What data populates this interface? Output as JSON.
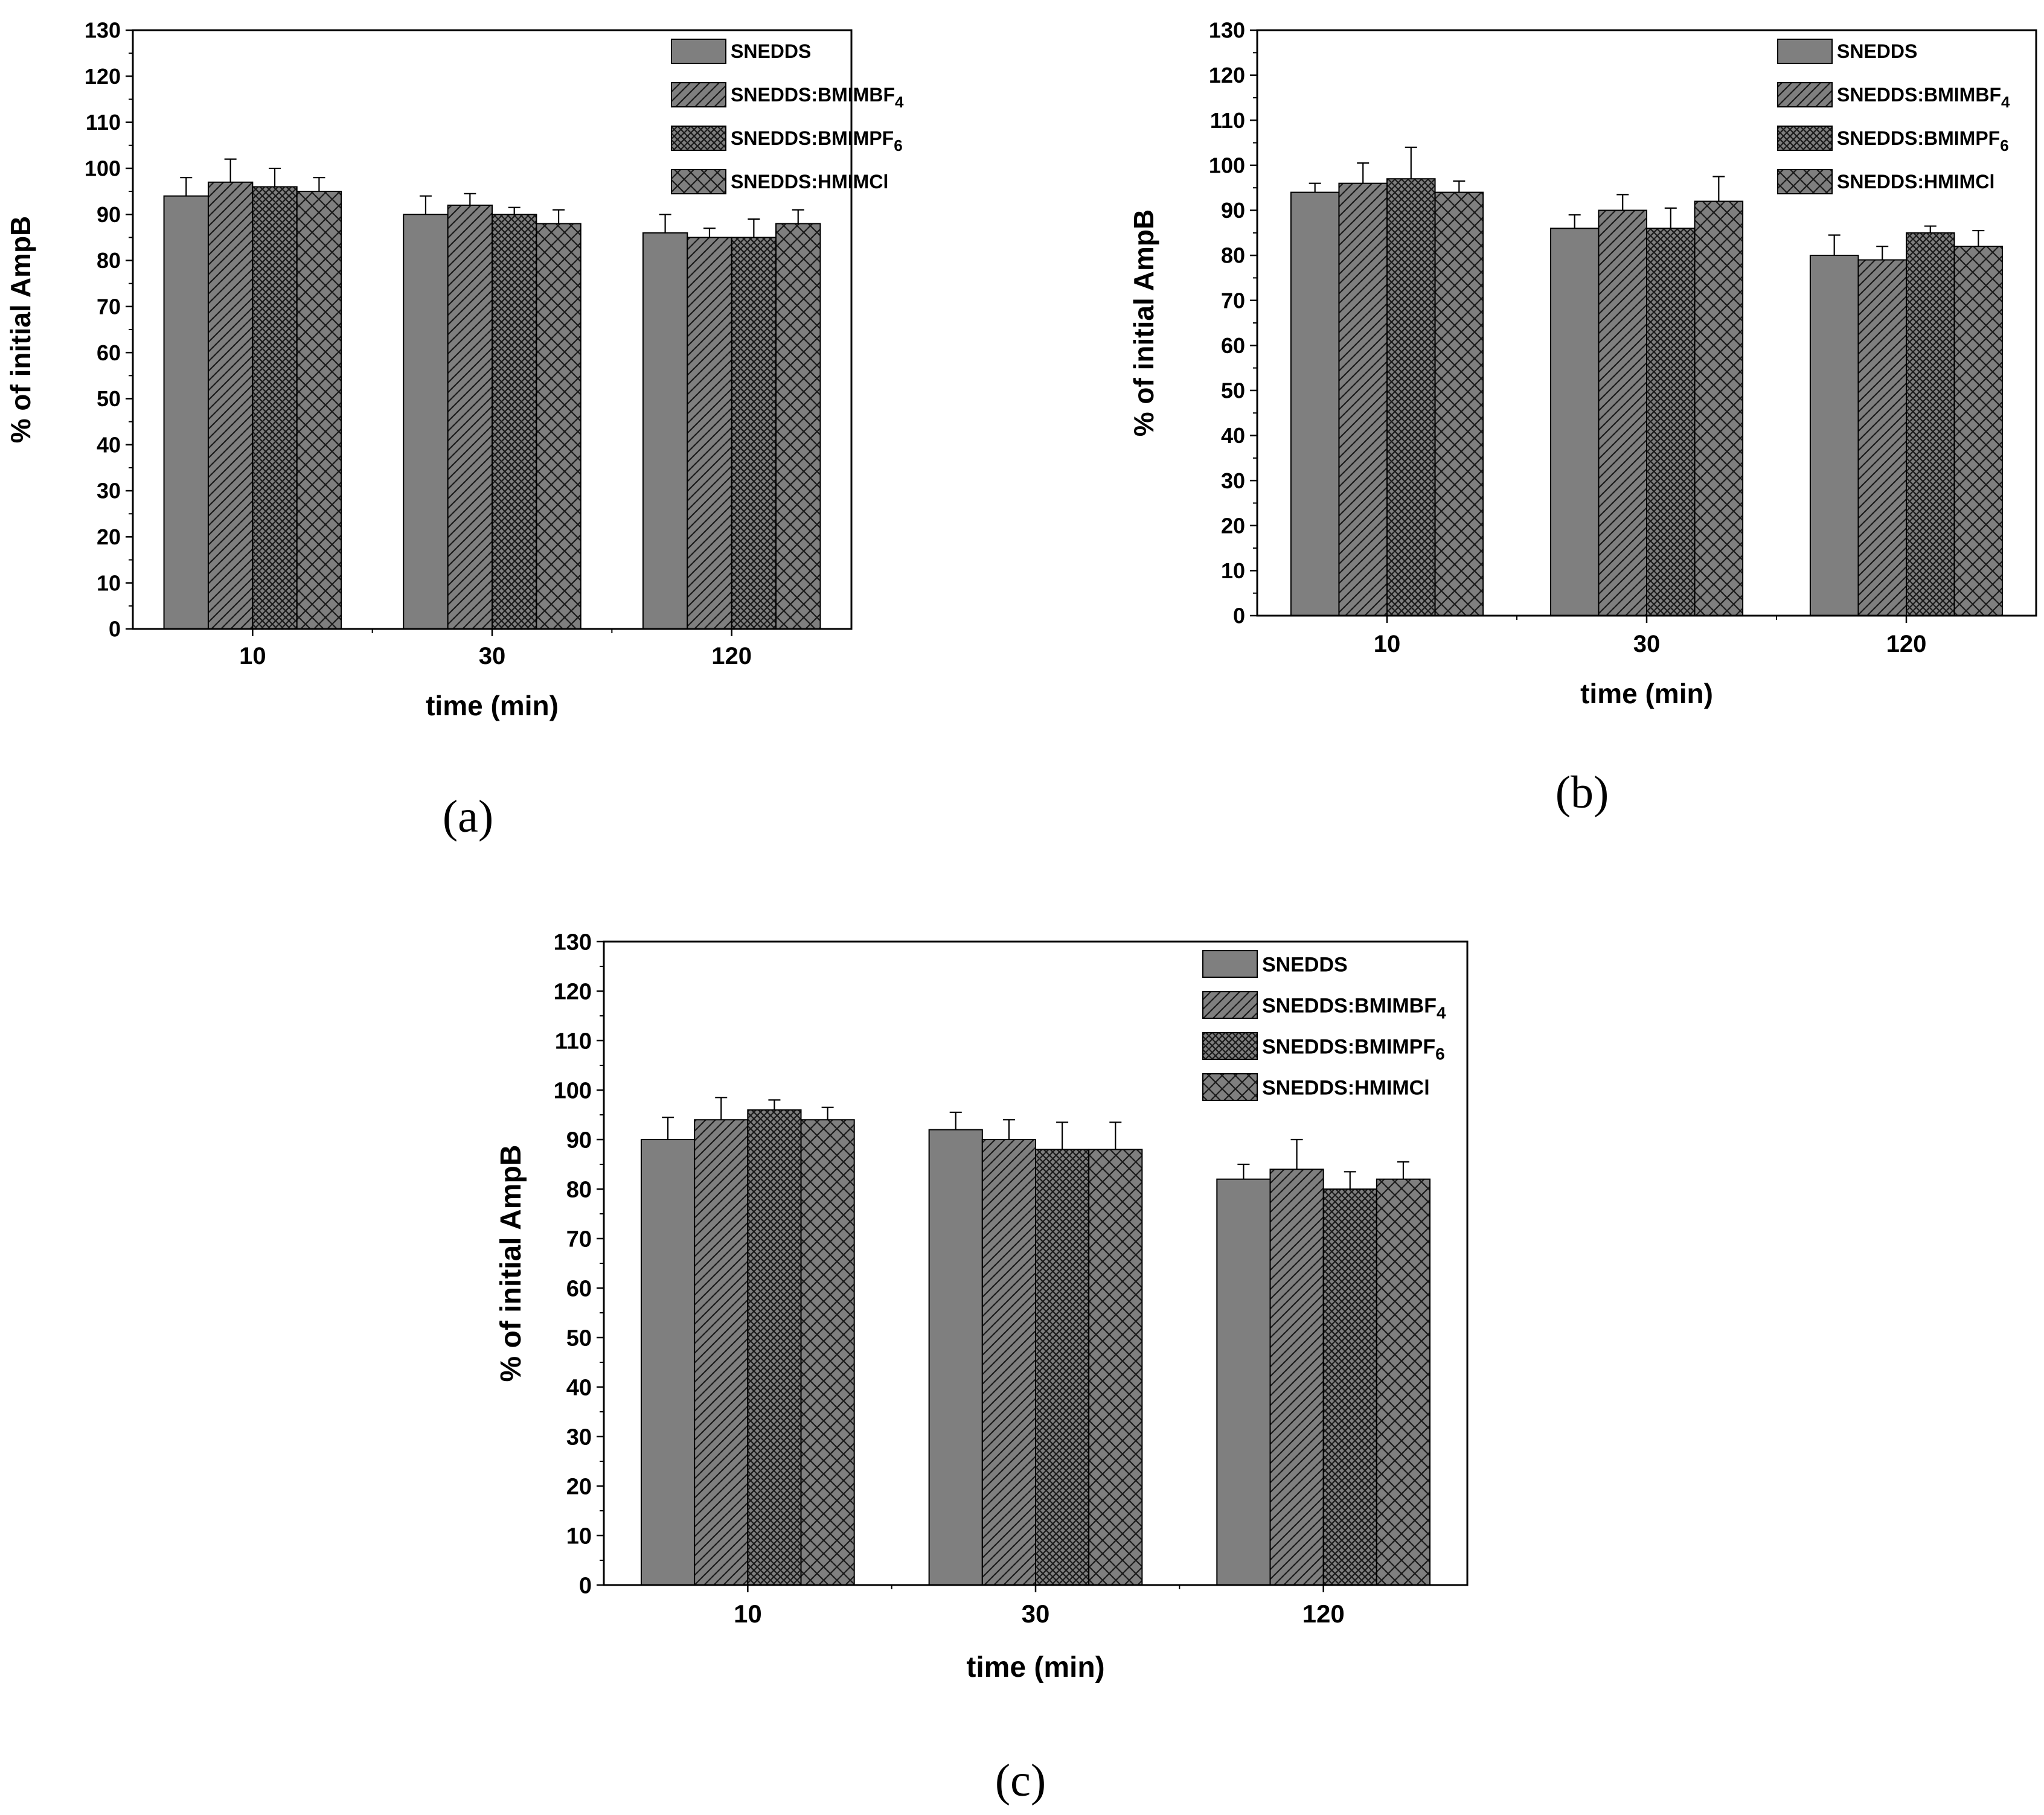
{
  "colors": {
    "bar_fill": "#7f7f7f",
    "hatch": "#1a1a1a",
    "axis": "#000000",
    "background": "#ffffff"
  },
  "chart_data": [
    {
      "type": "bar",
      "panel_label": "(a)",
      "title": "",
      "xlabel": "time (min)",
      "ylabel": "% of initial AmpB",
      "categories": [
        "10",
        "30",
        "120"
      ],
      "ylim": [
        0,
        130
      ],
      "yticks": [
        0,
        10,
        20,
        30,
        40,
        50,
        60,
        70,
        80,
        90,
        100,
        110,
        120,
        130
      ],
      "legend_position": "top-right",
      "series": [
        {
          "name": "SNEDDS",
          "pattern": "solid",
          "values": [
            94,
            90,
            86
          ],
          "errors": [
            4,
            4,
            4
          ]
        },
        {
          "name": "SNEDDS:BMIMBF4",
          "pattern": "diagonal",
          "values": [
            97,
            92,
            85
          ],
          "errors": [
            5,
            2.5,
            2
          ]
        },
        {
          "name": "SNEDDS:BMIMPF6",
          "pattern": "dense-crosshatch",
          "values": [
            96,
            90,
            85
          ],
          "errors": [
            4,
            1.5,
            4
          ]
        },
        {
          "name": "SNEDDS:HMIMCl",
          "pattern": "crosshatch",
          "values": [
            95,
            88,
            88
          ],
          "errors": [
            3,
            3,
            3
          ]
        }
      ]
    },
    {
      "type": "bar",
      "panel_label": "(b)",
      "title": "",
      "xlabel": "time (min)",
      "ylabel": "% of initial AmpB",
      "categories": [
        "10",
        "30",
        "120"
      ],
      "ylim": [
        0,
        130
      ],
      "yticks": [
        0,
        10,
        20,
        30,
        40,
        50,
        60,
        70,
        80,
        90,
        100,
        110,
        120,
        130
      ],
      "legend_position": "top-right",
      "series": [
        {
          "name": "SNEDDS",
          "pattern": "solid",
          "values": [
            94,
            86,
            80
          ],
          "errors": [
            2,
            3,
            4.5
          ]
        },
        {
          "name": "SNEDDS:BMIMBF4",
          "pattern": "diagonal",
          "values": [
            96,
            90,
            79
          ],
          "errors": [
            4.5,
            3.5,
            3
          ]
        },
        {
          "name": "SNEDDS:BMIMPF6",
          "pattern": "dense-crosshatch",
          "values": [
            97,
            86,
            85
          ],
          "errors": [
            7,
            4.5,
            1.5
          ]
        },
        {
          "name": "SNEDDS:HMIMCl",
          "pattern": "crosshatch",
          "values": [
            94,
            92,
            82
          ],
          "errors": [
            2.5,
            5.5,
            3.5
          ]
        }
      ]
    },
    {
      "type": "bar",
      "panel_label": "(c)",
      "title": "",
      "xlabel": "time (min)",
      "ylabel": "% of initial AmpB",
      "categories": [
        "10",
        "30",
        "120"
      ],
      "ylim": [
        0,
        130
      ],
      "yticks": [
        0,
        10,
        20,
        30,
        40,
        50,
        60,
        70,
        80,
        90,
        100,
        110,
        120,
        130
      ],
      "legend_position": "top-right",
      "series": [
        {
          "name": "SNEDDS",
          "pattern": "solid",
          "values": [
            90,
            92,
            82
          ],
          "errors": [
            4.5,
            3.5,
            3
          ]
        },
        {
          "name": "SNEDDS:BMIMBF4",
          "pattern": "diagonal",
          "values": [
            94,
            90,
            84
          ],
          "errors": [
            4.5,
            4,
            6
          ]
        },
        {
          "name": "SNEDDS:BMIMPF6",
          "pattern": "dense-crosshatch",
          "values": [
            96,
            88,
            80
          ],
          "errors": [
            2,
            5.5,
            3.5
          ]
        },
        {
          "name": "SNEDDS:HMIMCl",
          "pattern": "crosshatch",
          "values": [
            94,
            88,
            82
          ],
          "errors": [
            2.5,
            5.5,
            3.5
          ]
        }
      ]
    }
  ]
}
